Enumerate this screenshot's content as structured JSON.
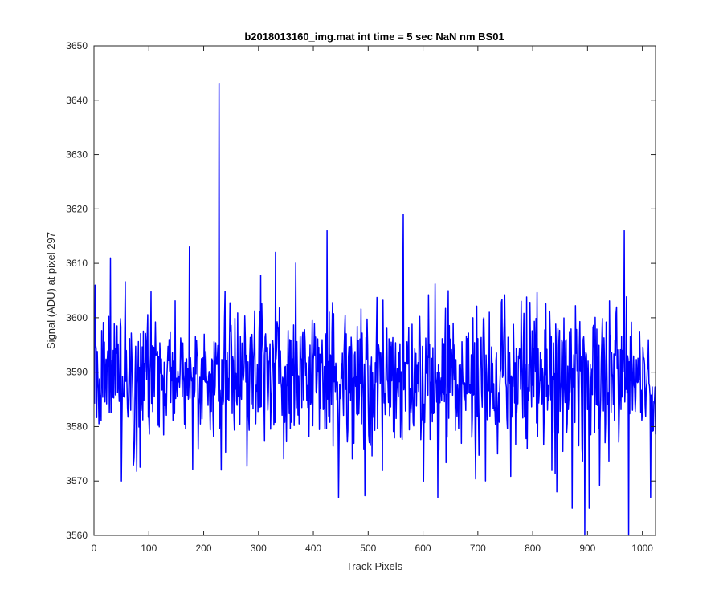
{
  "chart_data": {
    "type": "line",
    "title": "b2018013160_img.mat int time = 5 sec  NaN nm BS01",
    "xlabel": "Track Pixels",
    "ylabel": "Signal (ADU) at pixel 297",
    "xlim": [
      0,
      1024
    ],
    "ylim": [
      3560,
      3650
    ],
    "xticks": [
      0,
      100,
      200,
      300,
      400,
      500,
      600,
      700,
      800,
      900,
      1000
    ],
    "yticks": [
      3560,
      3570,
      3580,
      3590,
      3600,
      3610,
      3620,
      3630,
      3640,
      3650
    ],
    "grid": false,
    "line_color": "#0000ff",
    "series": [
      {
        "x_start": 1,
        "x_step": 1,
        "mean": 3589,
        "std": 7,
        "samples": 1024,
        "key_points": [
          {
            "x": 2,
            "y": 3606
          },
          {
            "x": 30,
            "y": 3611
          },
          {
            "x": 50,
            "y": 3570
          },
          {
            "x": 174,
            "y": 3613
          },
          {
            "x": 228,
            "y": 3643
          },
          {
            "x": 232,
            "y": 3572
          },
          {
            "x": 331,
            "y": 3612
          },
          {
            "x": 425,
            "y": 3616
          },
          {
            "x": 446,
            "y": 3567
          },
          {
            "x": 564,
            "y": 3619
          },
          {
            "x": 627,
            "y": 3567
          },
          {
            "x": 844,
            "y": 3568
          },
          {
            "x": 872,
            "y": 3565
          },
          {
            "x": 895,
            "y": 3560
          },
          {
            "x": 903,
            "y": 3565
          },
          {
            "x": 967,
            "y": 3616
          },
          {
            "x": 975,
            "y": 3560
          },
          {
            "x": 1015,
            "y": 3567
          }
        ]
      }
    ]
  }
}
